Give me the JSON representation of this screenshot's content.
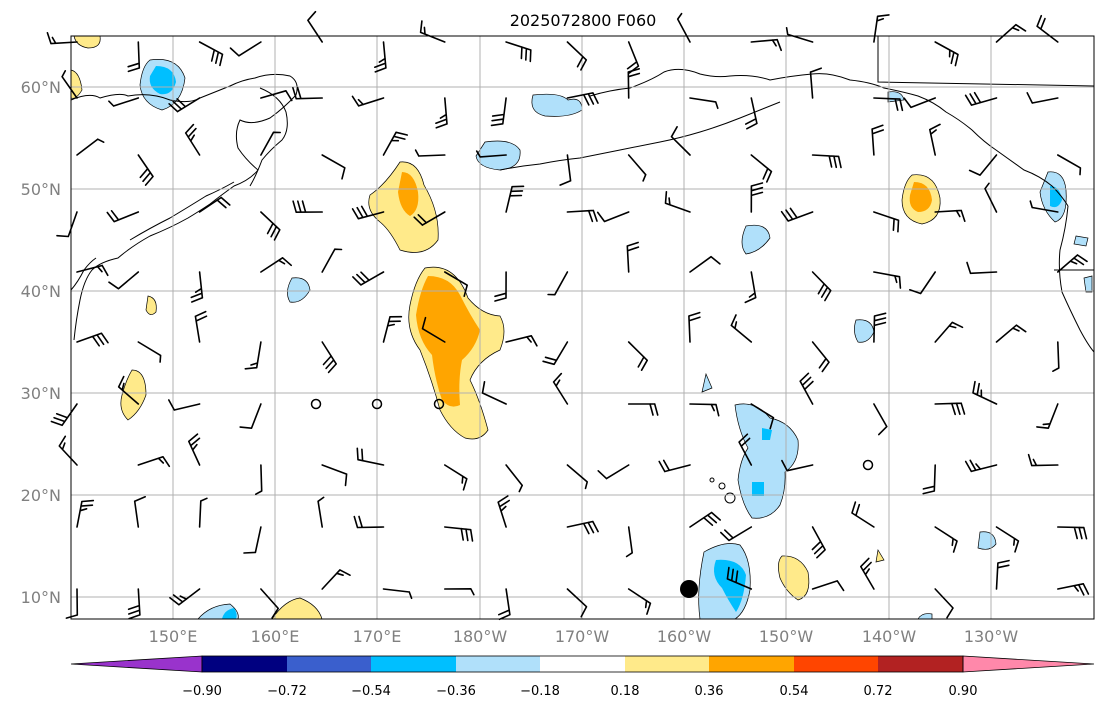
{
  "title": "2025072800 F060",
  "map": {
    "lon_range": [
      "140°E",
      "120°W"
    ],
    "lat_range": [
      "8°N",
      "65°N"
    ],
    "gridlines": true
  },
  "lat_labels": [
    "60°N",
    "50°N",
    "40°N",
    "30°N",
    "20°N",
    "10°N"
  ],
  "lon_labels": [
    "150°E",
    "160°E",
    "170°E",
    "180°W",
    "170°W",
    "160°W",
    "150°W",
    "140°W",
    "130°W"
  ],
  "colorbar": {
    "ticks": [
      "−0.90",
      "−0.72",
      "−0.54",
      "−0.36",
      "−0.18",
      "0.18",
      "0.36",
      "0.54",
      "0.72",
      "0.90"
    ],
    "colors": [
      "#9933cc",
      "#000080",
      "#3a5fcd",
      "#00bfff",
      "#b0e0fa",
      "#ffffff",
      "#ffea8a",
      "#ffa500",
      "#ff4500",
      "#b22222",
      "#ff88aa"
    ],
    "extend": "both"
  },
  "contour_colors": {
    "light_yellow": "#ffea8a",
    "orange": "#ffa500",
    "light_blue": "#b0e0fa",
    "deep_sky": "#00bfff"
  }
}
